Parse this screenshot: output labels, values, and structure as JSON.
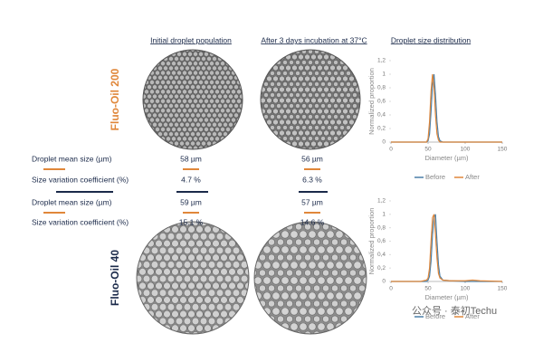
{
  "headers": [
    "Initial droplet population",
    "After 3 days incubation at 37°C",
    "Droplet size distribution"
  ],
  "oils": [
    "Fluo-Oil 200",
    "Fluo-Oil 40"
  ],
  "stats": [
    [
      "Droplet mean size (µm)",
      "58 µm",
      "56 µm"
    ],
    [
      "Size variation coefficient (%)",
      "4.7 %",
      "6.3 %"
    ],
    [
      "Droplet mean size (µm)",
      "59 µm",
      "57 µm"
    ],
    [
      "Size variation coefficient (%)",
      "15.1 %",
      "14.6 %"
    ]
  ],
  "watermark": "公众号 · 泰初Techu",
  "chart_data": [
    {
      "type": "line",
      "x_label": "Diameter (µm)",
      "y_label": "Normalized proportion",
      "x": [
        0,
        20,
        40,
        48,
        50,
        52,
        54,
        56,
        58,
        60,
        62,
        64,
        66,
        70,
        80,
        100,
        110,
        120,
        150
      ],
      "series": [
        {
          "name": "Before",
          "color": "#4a7fa8",
          "values": [
            0,
            0,
            0,
            0,
            0.02,
            0.12,
            0.45,
            0.85,
            1,
            0.7,
            0.3,
            0.08,
            0.02,
            0,
            0,
            0,
            0,
            0,
            0
          ]
        },
        {
          "name": "After",
          "color": "#e0873a",
          "values": [
            0,
            0,
            0,
            0,
            0.05,
            0.3,
            0.75,
            1,
            0.8,
            0.4,
            0.12,
            0.03,
            0,
            0,
            0,
            0,
            0,
            0,
            0
          ]
        }
      ],
      "xlim": [
        0,
        150
      ],
      "xticks": [
        0,
        50,
        100,
        150
      ],
      "ylim": [
        0,
        1.2
      ],
      "yticks": [
        0,
        {
          "value": 0.2,
          "label": "0,2"
        },
        {
          "value": 0.4,
          "label": "0,4"
        },
        {
          "value": 0.6,
          "label": "0,6"
        },
        {
          "value": 0.8,
          "label": "0,8"
        },
        1,
        {
          "value": 1.2,
          "label": "1,2"
        }
      ],
      "grid": false,
      "legend": "bottom"
    },
    {
      "type": "line",
      "x_label": "Diameter (µm)",
      "y_label": "Normalized proportion",
      "x": [
        0,
        20,
        40,
        48,
        50,
        52,
        54,
        56,
        58,
        60,
        62,
        64,
        66,
        70,
        80,
        100,
        110,
        120,
        150
      ],
      "series": [
        {
          "name": "Before",
          "color": "#4a7fa8",
          "values": [
            0,
            0,
            0,
            0,
            0.02,
            0.08,
            0.3,
            0.7,
            0.95,
            1,
            0.6,
            0.25,
            0.08,
            0.02,
            0.01,
            0,
            0,
            0,
            0
          ]
        },
        {
          "name": "After",
          "color": "#e0873a",
          "values": [
            0,
            0,
            0,
            0.02,
            0.05,
            0.2,
            0.6,
            0.95,
            1,
            0.7,
            0.35,
            0.12,
            0.05,
            0.02,
            0.01,
            0.01,
            0.02,
            0.01,
            0
          ]
        }
      ],
      "xlim": [
        0,
        150
      ],
      "xticks": [
        0,
        50,
        100,
        150
      ],
      "ylim": [
        0,
        1.2
      ],
      "yticks": [
        0,
        {
          "value": 0.2,
          "label": "0,2"
        },
        {
          "value": 0.4,
          "label": "0,4"
        },
        {
          "value": 0.6,
          "label": "0,6"
        },
        {
          "value": 0.8,
          "label": "0,8"
        },
        1,
        {
          "value": 1.2,
          "label": "1,2"
        }
      ],
      "grid": false,
      "legend": "bottom"
    }
  ]
}
